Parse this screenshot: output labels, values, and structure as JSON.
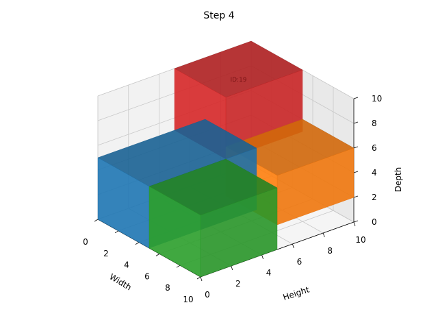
{
  "chart_data": {
    "type": "3d-box-packing",
    "title": "Step 4",
    "xlabel": "Width",
    "ylabel": "Height",
    "zlabel": "Depth",
    "xlim": [
      0,
      10
    ],
    "ylim": [
      0,
      10
    ],
    "zlim": [
      0,
      10
    ],
    "xticks": [
      "0",
      "2",
      "4",
      "6",
      "8",
      "10"
    ],
    "yticks": [
      "0",
      "2",
      "4",
      "6",
      "8",
      "10"
    ],
    "zticks": [
      "0",
      "2",
      "4",
      "6",
      "8",
      "10"
    ],
    "grid": true,
    "boxes": [
      {
        "color": "#1f77b4",
        "x": [
          0,
          5
        ],
        "y": [
          0,
          7
        ],
        "z": [
          0,
          5
        ]
      },
      {
        "color": "#ff7f0e",
        "x": [
          5,
          10
        ],
        "y": [
          5,
          10
        ],
        "z": [
          2,
          6
        ]
      },
      {
        "color": "#d62728",
        "x": [
          0,
          5
        ],
        "y": [
          5,
          10
        ],
        "z": [
          5,
          10
        ],
        "label": "ID:19"
      },
      {
        "color": "#2ca02c",
        "x": [
          5,
          10
        ],
        "y": [
          0,
          5
        ],
        "z": [
          0,
          5
        ]
      }
    ]
  }
}
